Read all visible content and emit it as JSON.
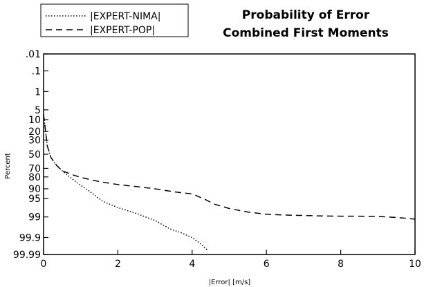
{
  "chart_data": {
    "type": "line",
    "title": [
      "Probability of Error",
      "Combined First Moments"
    ],
    "xlabel": "|Error| [m/s]",
    "ylabel": "Percent",
    "xlim": [
      0,
      10
    ],
    "y_scale": "normal-probability",
    "x_ticks": [
      {
        "value": 0,
        "label": "0"
      },
      {
        "value": 2,
        "label": "2"
      },
      {
        "value": 4,
        "label": "4"
      },
      {
        "value": 6,
        "label": "6"
      },
      {
        "value": 8,
        "label": "8"
      },
      {
        "value": 10,
        "label": "10"
      }
    ],
    "y_ticks": [
      {
        "value": 0.01,
        "label": ".01"
      },
      {
        "value": 0.1,
        "label": ".1"
      },
      {
        "value": 1,
        "label": "1"
      },
      {
        "value": 5,
        "label": "5"
      },
      {
        "value": 10,
        "label": "10"
      },
      {
        "value": 20,
        "label": "20"
      },
      {
        "value": 30,
        "label": "30"
      },
      {
        "value": 50,
        "label": "50"
      },
      {
        "value": 70,
        "label": "70"
      },
      {
        "value": 80,
        "label": "80"
      },
      {
        "value": 90,
        "label": "90"
      },
      {
        "value": 95,
        "label": "95"
      },
      {
        "value": 99,
        "label": "99"
      },
      {
        "value": 99.9,
        "label": "99.9"
      },
      {
        "value": 99.99,
        "label": "99.99"
      }
    ],
    "grid": false,
    "legend_position": "top-left",
    "series": [
      {
        "name": "|EXPERT-NIMA|",
        "style": "dotted",
        "color": "#000000",
        "x": [
          0.0,
          0.1,
          0.2,
          0.3,
          0.5,
          0.7,
          1.0,
          1.3,
          1.6,
          2.0,
          2.5,
          3.0,
          3.4,
          3.7,
          4.0,
          4.2,
          4.4
        ],
        "y": [
          7,
          38,
          55,
          63,
          73,
          80,
          87.5,
          92.5,
          96,
          97.6,
          98.6,
          99.3,
          99.72,
          99.82,
          99.9,
          99.95,
          99.98
        ]
      },
      {
        "name": "|EXPERT-POP|",
        "style": "dashed",
        "color": "#000000",
        "x": [
          0.0,
          0.1,
          0.2,
          0.35,
          0.5,
          0.8,
          1.0,
          1.5,
          2.0,
          2.5,
          3.0,
          3.5,
          4.0,
          4.3,
          4.6,
          5.0,
          5.5,
          6.0,
          6.5,
          7.0,
          7.5,
          8.0,
          8.5,
          9.0,
          9.5,
          10.0
        ],
        "y": [
          7,
          38,
          55,
          66,
          73,
          78,
          80.5,
          84.5,
          87,
          88.5,
          90,
          91.8,
          93,
          95,
          96.8,
          97.8,
          98.4,
          98.7,
          98.8,
          98.85,
          98.9,
          98.92,
          98.92,
          98.95,
          99.05,
          99.2
        ]
      }
    ]
  }
}
